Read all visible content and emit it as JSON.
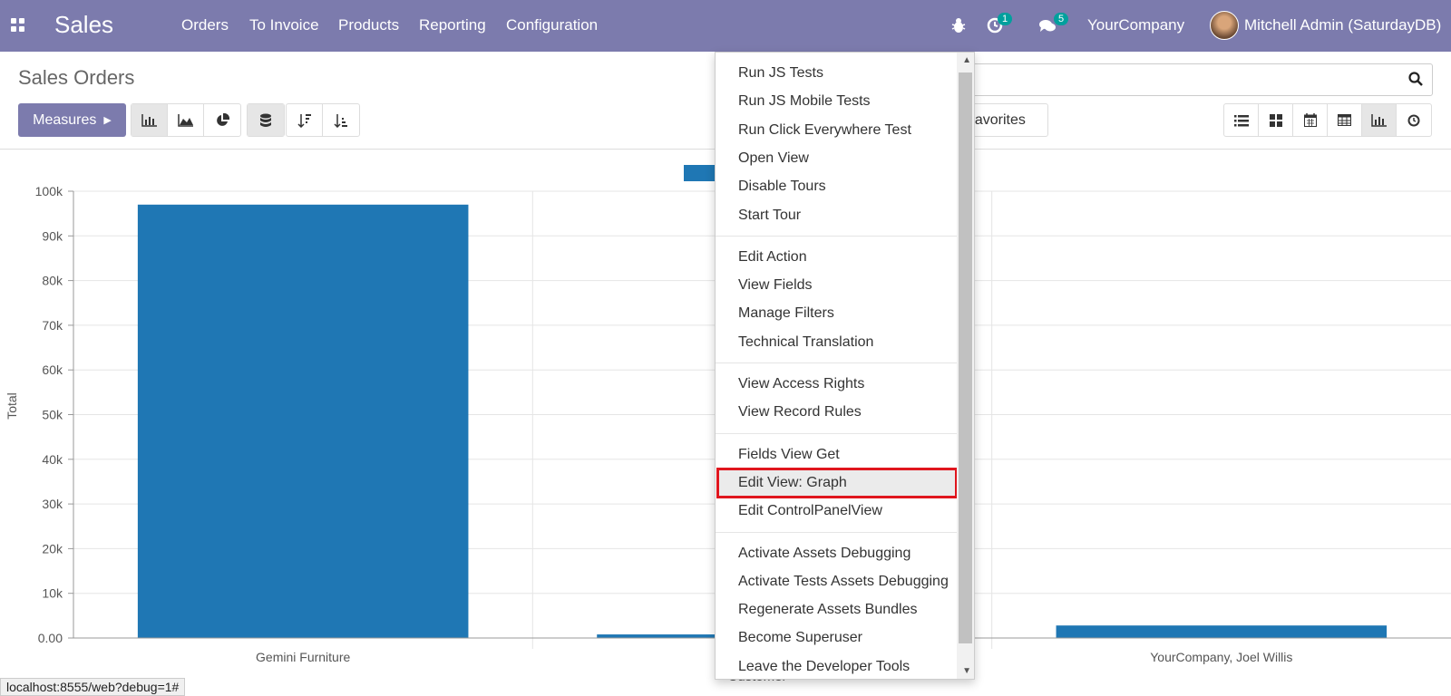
{
  "navbar": {
    "brand": "Sales",
    "menu": [
      "Orders",
      "To Invoice",
      "Products",
      "Reporting",
      "Configuration"
    ],
    "activity_count": "1",
    "message_count": "5",
    "company": "YourCompany",
    "user": "Mitchell Admin (SaturdayDB)"
  },
  "control_panel": {
    "title": "Sales Orders",
    "measures_label": "Measures",
    "favorites_label": "Favorites"
  },
  "chart_data": {
    "type": "bar",
    "categories": [
      "Gemini Furniture",
      "",
      "YourCompany, Joel Willis"
    ],
    "values": [
      97000,
      800,
      2800
    ],
    "xlabel": "Customer",
    "ylabel": "Total",
    "ylim": [
      0,
      100000
    ],
    "yticks": [
      "0.00",
      "10k",
      "20k",
      "30k",
      "40k",
      "50k",
      "60k",
      "70k",
      "80k",
      "90k",
      "100k"
    ],
    "grid": true,
    "color": "#1f77b4"
  },
  "debug_menu": {
    "groups": [
      [
        "Run JS Tests",
        "Run JS Mobile Tests",
        "Run Click Everywhere Test",
        "Open View",
        "Disable Tours",
        "Start Tour"
      ],
      [
        "Edit Action",
        "View Fields",
        "Manage Filters",
        "Technical Translation"
      ],
      [
        "View Access Rights",
        "View Record Rules"
      ],
      [
        "Fields View Get",
        "Edit View: Graph",
        "Edit ControlPanelView"
      ],
      [
        "Activate Assets Debugging",
        "Activate Tests Assets Debugging",
        "Regenerate Assets Bundles",
        "Become Superuser",
        "Leave the Developer Tools"
      ]
    ],
    "highlighted": "Edit View: Graph"
  },
  "status_url": "localhost:8555/web?debug=1#",
  "colors": {
    "navbar": "#7c7bad",
    "badge": "#00a09d",
    "highlight_border": "#e0161e"
  }
}
